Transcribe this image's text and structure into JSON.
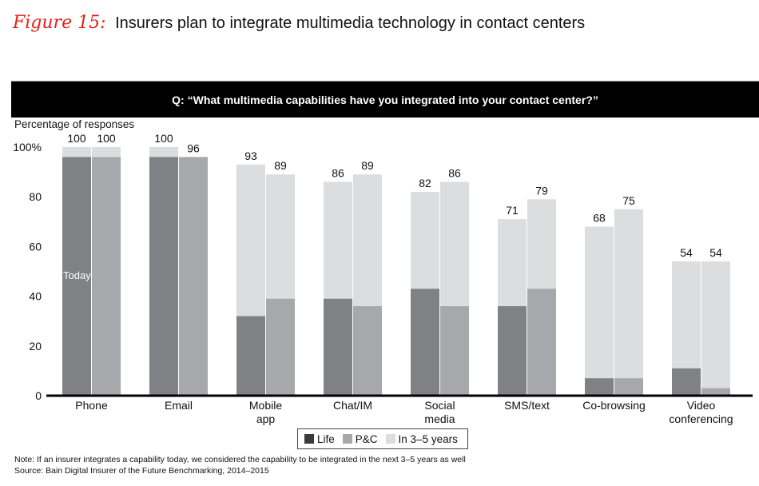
{
  "figure": {
    "label": "Figure 15:",
    "title": "Insurers plan to integrate multimedia technology in contact centers"
  },
  "question": "Q: “What multimedia capabilities have you integrated into your contact center?”",
  "colors": {
    "life": "#808184",
    "pc": "#a7a8ab",
    "future": "#dcdddf",
    "accent": "#e2231a",
    "header_bg": "#000000"
  },
  "chart_data": {
    "type": "bar",
    "stacked": true,
    "title": "Insurers plan to integrate multimedia technology in contact centers",
    "ylabel": "Percentage of responses",
    "xlabel": "",
    "ylim": [
      0,
      100
    ],
    "yticks": [
      0,
      20,
      40,
      60,
      80,
      100
    ],
    "ytick_labels": [
      "0",
      "20",
      "40",
      "60",
      "80",
      "100%"
    ],
    "categories": [
      "Phone",
      "Email",
      "Mobile app",
      "Chat/IM",
      "Social media",
      "SMS/text",
      "Co-browsing",
      "Video conferencing"
    ],
    "category_lines": [
      [
        "Phone"
      ],
      [
        "Email"
      ],
      [
        "Mobile",
        "app"
      ],
      [
        "Chat/IM"
      ],
      [
        "Social",
        "media"
      ],
      [
        "SMS/text"
      ],
      [
        "Co-browsing"
      ],
      [
        "Video",
        "conferencing"
      ]
    ],
    "segments_legend": [
      "Life",
      "P&C",
      "In 3–5 years"
    ],
    "series": [
      {
        "name": "Life",
        "today": [
          96,
          96,
          32,
          39,
          43,
          36,
          7,
          11
        ],
        "total_3_5_years": [
          100,
          100,
          93,
          86,
          82,
          71,
          68,
          54
        ]
      },
      {
        "name": "P&C",
        "today": [
          96,
          96,
          39,
          36,
          36,
          43,
          7,
          3
        ],
        "total_3_5_years": [
          100,
          96,
          89,
          89,
          86,
          79,
          75,
          54
        ]
      }
    ],
    "annotations": [
      {
        "text": "Today",
        "category": "Phone",
        "series": "Life"
      }
    ],
    "grid": false,
    "legend_position": "bottom-center"
  },
  "notes": {
    "note": "Note: If an insurer integrates a capability today, we considered the capability to be integrated in the next 3–5 years as well",
    "source": "Source: Bain Digital Insurer of the Future Benchmarking, 2014–2015"
  }
}
